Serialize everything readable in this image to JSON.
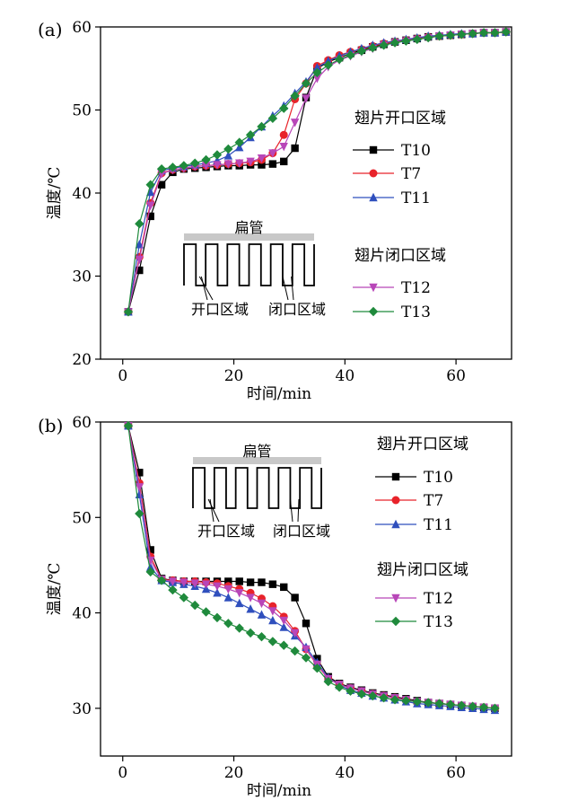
{
  "chart_data": [
    {
      "panel_label": "(a)",
      "type": "line",
      "xlabel": "时间/min",
      "ylabel": "温度/℃",
      "xlim": [
        -4,
        70
      ],
      "ylim": [
        20,
        60
      ],
      "xticks": [
        0,
        20,
        40,
        60
      ],
      "yticks": [
        20,
        30,
        40,
        50,
        60
      ],
      "grid": false,
      "legend": {
        "placement": "right",
        "groups": [
          {
            "title": "翅片开口区域",
            "series": [
              "T10",
              "T7",
              "T11"
            ]
          },
          {
            "title": "翅片闭口区域",
            "series": [
              "T12",
              "T13"
            ]
          }
        ]
      },
      "inset": {
        "label_top": "扁管",
        "label_open": "开口区域",
        "label_closed": "闭口区域"
      },
      "series": [
        {
          "name": "T10",
          "color": "#000000",
          "marker": "square",
          "x": [
            1,
            3,
            5,
            7,
            9,
            11,
            13,
            15,
            17,
            19,
            21,
            23,
            25,
            27,
            29,
            31,
            33,
            35,
            37,
            39,
            41,
            43,
            45,
            47,
            49,
            51,
            53,
            55,
            57,
            59,
            61,
            63,
            65,
            67,
            69
          ],
          "y": [
            25.7,
            30.7,
            37.2,
            41.0,
            42.5,
            42.9,
            43.0,
            43.1,
            43.2,
            43.3,
            43.3,
            43.4,
            43.4,
            43.5,
            43.8,
            45.4,
            51.5,
            55.0,
            55.8,
            56.3,
            56.8,
            57.2,
            57.6,
            57.9,
            58.2,
            58.4,
            58.6,
            58.8,
            58.9,
            59.0,
            59.1,
            59.2,
            59.3,
            59.3,
            59.4
          ]
        },
        {
          "name": "T7",
          "color": "#e8232a",
          "marker": "circle",
          "x": [
            1,
            3,
            5,
            7,
            9,
            11,
            13,
            15,
            17,
            19,
            21,
            23,
            25,
            27,
            29,
            31,
            33,
            35,
            37,
            39,
            41,
            43,
            45,
            47,
            49,
            51,
            53,
            55,
            57,
            59,
            61,
            63,
            65,
            67,
            69
          ],
          "y": [
            25.7,
            32.3,
            38.8,
            42.4,
            42.8,
            43.0,
            43.2,
            43.3,
            43.4,
            43.5,
            43.6,
            43.7,
            44.0,
            44.8,
            47.0,
            51.3,
            53.2,
            55.3,
            56.0,
            56.6,
            57.0,
            57.3,
            57.7,
            58.0,
            58.2,
            58.4,
            58.6,
            58.8,
            58.9,
            59.0,
            59.1,
            59.2,
            59.3,
            59.3,
            59.4
          ]
        },
        {
          "name": "T11",
          "color": "#2f4fbd",
          "marker": "triangle-up",
          "x": [
            1,
            3,
            5,
            7,
            9,
            11,
            13,
            15,
            17,
            19,
            21,
            23,
            25,
            27,
            29,
            31,
            33,
            35,
            37,
            39,
            41,
            43,
            45,
            47,
            49,
            51,
            53,
            55,
            57,
            59,
            61,
            63,
            65,
            67,
            69
          ],
          "y": [
            25.7,
            33.8,
            40.1,
            42.7,
            43.0,
            43.2,
            43.4,
            43.6,
            43.9,
            44.5,
            45.5,
            46.7,
            48.0,
            49.3,
            50.5,
            52.0,
            53.4,
            55.1,
            55.9,
            56.5,
            57.0,
            57.4,
            57.8,
            58.1,
            58.3,
            58.5,
            58.7,
            58.9,
            59.0,
            59.1,
            59.2,
            59.2,
            59.3,
            59.3,
            59.4
          ]
        },
        {
          "name": "T12",
          "color": "#b846b8",
          "marker": "triangle-down",
          "x": [
            1,
            3,
            5,
            7,
            9,
            11,
            13,
            15,
            17,
            19,
            21,
            23,
            25,
            27,
            29,
            31,
            33,
            35,
            37,
            39,
            41,
            43,
            45,
            47,
            49,
            51,
            53,
            55,
            57,
            59,
            61,
            63,
            65,
            67,
            69
          ],
          "y": [
            25.7,
            32.0,
            38.5,
            42.3,
            42.8,
            43.0,
            43.2,
            43.3,
            43.4,
            43.5,
            43.6,
            43.8,
            44.2,
            44.8,
            45.6,
            48.5,
            51.4,
            53.8,
            55.2,
            56.0,
            56.5,
            57.0,
            57.4,
            57.8,
            58.1,
            58.3,
            58.5,
            58.7,
            58.9,
            59.0,
            59.1,
            59.2,
            59.3,
            59.3,
            59.4
          ]
        },
        {
          "name": "T13",
          "color": "#1f8a3c",
          "marker": "diamond",
          "x": [
            1,
            3,
            5,
            7,
            9,
            11,
            13,
            15,
            17,
            19,
            21,
            23,
            25,
            27,
            29,
            31,
            33,
            35,
            37,
            39,
            41,
            43,
            45,
            47,
            49,
            51,
            53,
            55,
            57,
            59,
            61,
            63,
            65,
            67,
            69
          ],
          "y": [
            25.7,
            36.3,
            41.0,
            42.9,
            43.1,
            43.3,
            43.6,
            44.0,
            44.6,
            45.3,
            46.1,
            47.0,
            48.0,
            49.0,
            50.2,
            51.7,
            53.2,
            54.5,
            55.4,
            56.1,
            56.6,
            57.1,
            57.5,
            57.8,
            58.1,
            58.3,
            58.5,
            58.7,
            58.9,
            59.0,
            59.1,
            59.2,
            59.3,
            59.3,
            59.4
          ]
        }
      ]
    },
    {
      "panel_label": "(b)",
      "type": "line",
      "xlabel": "时间/min",
      "ylabel": "温度/℃",
      "xlim": [
        -4,
        70
      ],
      "ylim": [
        25,
        60
      ],
      "xticks": [
        0,
        20,
        40,
        60
      ],
      "yticks": [
        30,
        40,
        50,
        60
      ],
      "grid": false,
      "legend": {
        "placement": "right",
        "groups": [
          {
            "title": "翅片开口区域",
            "series": [
              "T10",
              "T7",
              "T11"
            ]
          },
          {
            "title": "翅片闭口区域",
            "series": [
              "T12",
              "T13"
            ]
          }
        ]
      },
      "inset": {
        "label_top": "扁管",
        "label_open": "开口区域",
        "label_closed": "闭口区域"
      },
      "series": [
        {
          "name": "T10",
          "color": "#000000",
          "marker": "square",
          "x": [
            1,
            3,
            5,
            7,
            9,
            11,
            13,
            15,
            17,
            19,
            21,
            23,
            25,
            27,
            29,
            31,
            33,
            35,
            37,
            39,
            41,
            43,
            45,
            47,
            49,
            51,
            53,
            55,
            57,
            59,
            61,
            63,
            65,
            67
          ],
          "y": [
            59.6,
            54.7,
            46.6,
            43.6,
            43.4,
            43.3,
            43.3,
            43.3,
            43.3,
            43.3,
            43.3,
            43.2,
            43.2,
            43.0,
            42.7,
            41.6,
            38.9,
            35.2,
            33.3,
            32.6,
            32.2,
            31.9,
            31.6,
            31.4,
            31.2,
            31.0,
            30.8,
            30.6,
            30.5,
            30.4,
            30.3,
            30.2,
            30.1,
            30.0
          ]
        },
        {
          "name": "T7",
          "color": "#e8232a",
          "marker": "circle",
          "x": [
            1,
            3,
            5,
            7,
            9,
            11,
            13,
            15,
            17,
            19,
            21,
            23,
            25,
            27,
            29,
            31,
            33,
            35,
            37,
            39,
            41,
            43,
            45,
            47,
            49,
            51,
            53,
            55,
            57,
            59,
            61,
            63,
            65,
            67
          ],
          "y": [
            59.6,
            53.6,
            45.9,
            43.5,
            43.4,
            43.3,
            43.3,
            43.2,
            43.1,
            42.8,
            42.5,
            42.1,
            41.5,
            40.7,
            39.6,
            38.1,
            36.2,
            34.5,
            33.1,
            32.5,
            32.1,
            31.8,
            31.5,
            31.3,
            31.1,
            30.9,
            30.7,
            30.6,
            30.5,
            30.4,
            30.3,
            30.2,
            30.1,
            30.0
          ]
        },
        {
          "name": "T11",
          "color": "#2f4fbd",
          "marker": "triangle-up",
          "x": [
            1,
            3,
            5,
            7,
            9,
            11,
            13,
            15,
            17,
            19,
            21,
            23,
            25,
            27,
            29,
            31,
            33,
            35,
            37,
            39,
            41,
            43,
            45,
            47,
            49,
            51,
            53,
            55,
            57,
            59,
            61,
            63,
            65,
            67
          ],
          "y": [
            59.6,
            52.4,
            44.8,
            43.4,
            43.2,
            43.0,
            42.8,
            42.5,
            42.1,
            41.6,
            41.0,
            40.4,
            39.8,
            39.2,
            38.5,
            37.6,
            36.4,
            34.8,
            33.2,
            32.4,
            31.9,
            31.6,
            31.3,
            31.1,
            30.9,
            30.7,
            30.5,
            30.4,
            30.3,
            30.2,
            30.1,
            30.0,
            29.9,
            29.8
          ]
        },
        {
          "name": "T12",
          "color": "#b846b8",
          "marker": "triangle-down",
          "x": [
            1,
            3,
            5,
            7,
            9,
            11,
            13,
            15,
            17,
            19,
            21,
            23,
            25,
            27,
            29,
            31,
            33,
            35,
            37,
            39,
            41,
            43,
            45,
            47,
            49,
            51,
            53,
            55,
            57,
            59,
            61,
            63,
            65,
            67
          ],
          "y": [
            59.6,
            53.2,
            45.5,
            43.5,
            43.3,
            43.2,
            43.1,
            43.0,
            42.8,
            42.5,
            42.1,
            41.6,
            41.0,
            40.2,
            39.2,
            37.9,
            36.2,
            34.6,
            33.1,
            32.5,
            32.1,
            31.8,
            31.5,
            31.3,
            31.1,
            30.9,
            30.7,
            30.6,
            30.5,
            30.4,
            30.3,
            30.2,
            30.1,
            30.0
          ]
        },
        {
          "name": "T13",
          "color": "#1f8a3c",
          "marker": "diamond",
          "x": [
            1,
            3,
            5,
            7,
            9,
            11,
            13,
            15,
            17,
            19,
            21,
            23,
            25,
            27,
            29,
            31,
            33,
            35,
            37,
            39,
            41,
            43,
            45,
            47,
            49,
            51,
            53,
            55,
            57,
            59,
            61,
            63,
            65,
            67
          ],
          "y": [
            59.6,
            50.4,
            44.3,
            43.4,
            42.4,
            41.6,
            40.8,
            40.1,
            39.5,
            38.9,
            38.4,
            37.9,
            37.5,
            37.0,
            36.6,
            36.0,
            35.3,
            34.2,
            32.8,
            32.2,
            31.8,
            31.5,
            31.3,
            31.1,
            30.9,
            30.8,
            30.7,
            30.6,
            30.5,
            30.4,
            30.3,
            30.2,
            30.1,
            30.0
          ]
        }
      ]
    }
  ]
}
